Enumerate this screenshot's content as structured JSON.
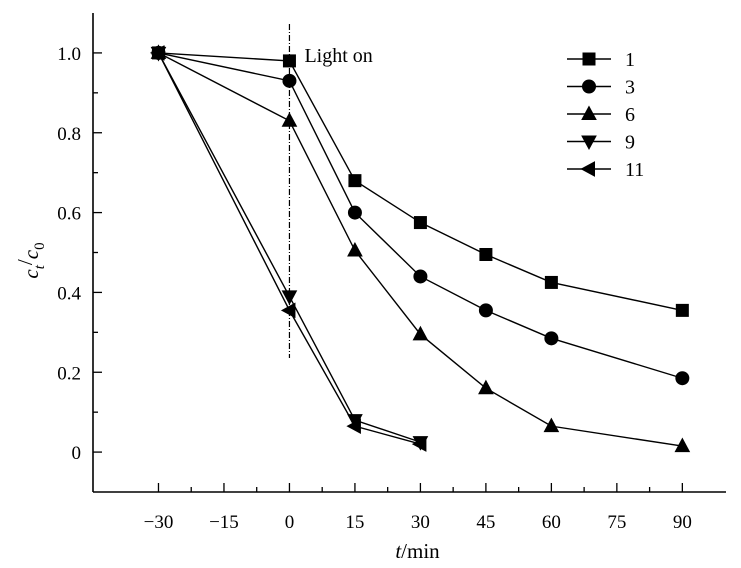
{
  "chart_data": {
    "type": "line",
    "title": "",
    "xlabel": {
      "italic": "t",
      "rest": "/min"
    },
    "ylabel": {
      "c": "c",
      "t_sub": "t",
      "slash": "/",
      "c0": "c",
      "zero_sub": "0"
    },
    "xlim": [
      -45,
      100
    ],
    "ylim": [
      -0.1,
      1.1
    ],
    "x_ticks": [
      -30,
      -15,
      0,
      15,
      30,
      45,
      60,
      75,
      90
    ],
    "x_tick_labels": [
      "−30",
      "−15",
      "0",
      "15",
      "30",
      "45",
      "60",
      "75",
      "90"
    ],
    "y_ticks": [
      0,
      0.2,
      0.4,
      0.6,
      0.8,
      1.0
    ],
    "y_tick_labels": [
      "0",
      "0.2",
      "0.4",
      "0.6",
      "0.8",
      "1.0"
    ],
    "grid": false,
    "legend_position": "top-right",
    "annotation": {
      "text": "Light on",
      "x": 0
    },
    "series": [
      {
        "name": "1",
        "marker": "square",
        "x": [
          -30,
          0,
          15,
          30,
          45,
          60,
          90
        ],
        "values": [
          1.0,
          0.98,
          0.68,
          0.575,
          0.495,
          0.425,
          0.355
        ]
      },
      {
        "name": "3",
        "marker": "circle",
        "x": [
          -30,
          0,
          15,
          30,
          45,
          60,
          90
        ],
        "values": [
          1.0,
          0.93,
          0.6,
          0.44,
          0.355,
          0.285,
          0.185
        ]
      },
      {
        "name": "6",
        "marker": "triangle-up",
        "x": [
          -30,
          0,
          15,
          30,
          45,
          60,
          90
        ],
        "values": [
          1.0,
          0.83,
          0.505,
          0.295,
          0.16,
          0.065,
          0.015
        ]
      },
      {
        "name": "9",
        "marker": "triangle-down",
        "x": [
          -30,
          0,
          15,
          30
        ],
        "values": [
          1.0,
          0.39,
          0.08,
          0.025
        ]
      },
      {
        "name": "11",
        "marker": "triangle-left",
        "x": [
          -30,
          0,
          15,
          30
        ],
        "values": [
          1.0,
          0.355,
          0.065,
          0.02
        ]
      }
    ]
  }
}
